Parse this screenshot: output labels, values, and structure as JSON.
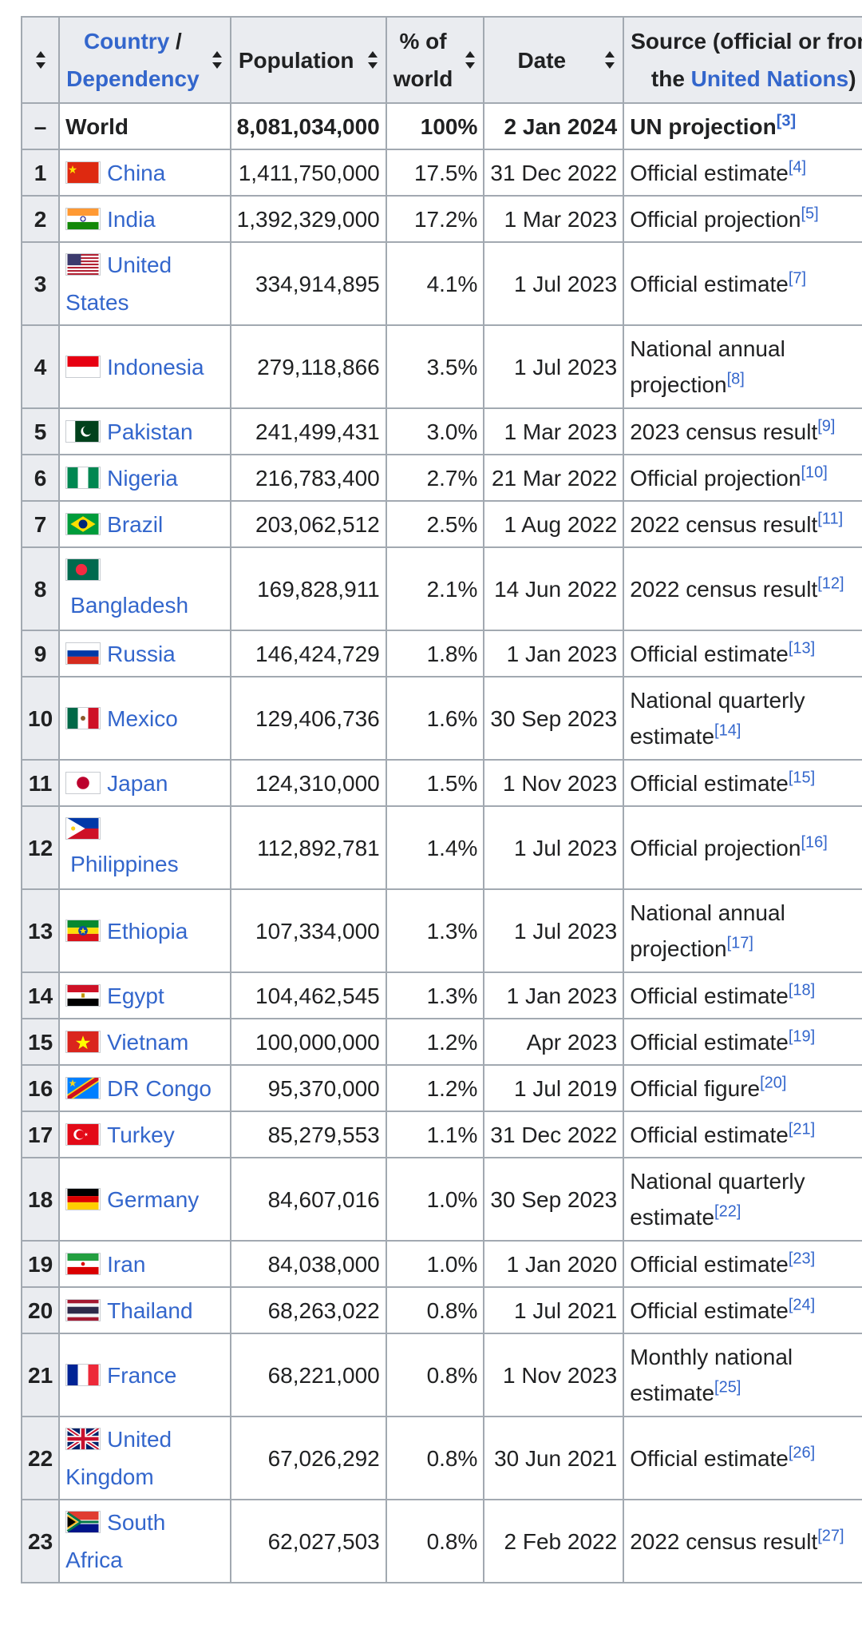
{
  "header": {
    "country": "Country",
    "slash": " / ",
    "dependency": "Dependency",
    "population": "Population",
    "pct_line1": "% of",
    "pct_line2": "world",
    "date": "Date",
    "source_line1": "Source (official or from",
    "source_line2_prefix": "the ",
    "source_line2_link": "United Nations",
    "source_line2_suffix": ")"
  },
  "world": {
    "rank": "–",
    "name": "World",
    "population": "8,081,034,000",
    "pct": "100%",
    "date": "2 Jan 2024",
    "source": "UN projection",
    "ref": "[3]"
  },
  "rows": [
    {
      "rank": "1",
      "name": "China",
      "population": "1,411,750,000",
      "pct": "17.5%",
      "date": "31 Dec 2022",
      "source": "Official estimate",
      "ref": "[4]"
    },
    {
      "rank": "2",
      "name": "India",
      "population": "1,392,329,000",
      "pct": "17.2%",
      "date": "1 Mar 2023",
      "source": "Official projection",
      "ref": "[5]"
    },
    {
      "rank": "3",
      "name_l1": "United",
      "name_l2": "States",
      "population": "334,914,895",
      "pct": "4.1%",
      "date": "1 Jul 2023",
      "source": "Official estimate",
      "ref": "[7]"
    },
    {
      "rank": "4",
      "name": "Indonesia",
      "population": "279,118,866",
      "pct": "3.5%",
      "date": "1 Jul 2023",
      "source_l1": "National annual",
      "source_l2": "projection",
      "ref": "[8]"
    },
    {
      "rank": "5",
      "name": "Pakistan",
      "population": "241,499,431",
      "pct": "3.0%",
      "date": "1 Mar 2023",
      "source": "2023 census result",
      "ref": "[9]"
    },
    {
      "rank": "6",
      "name": "Nigeria",
      "population": "216,783,400",
      "pct": "2.7%",
      "date": "21 Mar 2022",
      "source": "Official projection",
      "ref": "[10]"
    },
    {
      "rank": "7",
      "name": "Brazil",
      "population": "203,062,512",
      "pct": "2.5%",
      "date": "1 Aug 2022",
      "source": "2022 census result",
      "ref": "[11]"
    },
    {
      "rank": "8",
      "name": "Bangladesh",
      "population": "169,828,911",
      "pct": "2.1%",
      "date": "14 Jun 2022",
      "source": "2022 census result",
      "ref": "[12]"
    },
    {
      "rank": "9",
      "name": "Russia",
      "population": "146,424,729",
      "pct": "1.8%",
      "date": "1 Jan 2023",
      "source": "Official estimate",
      "ref": "[13]"
    },
    {
      "rank": "10",
      "name": "Mexico",
      "population": "129,406,736",
      "pct": "1.6%",
      "date": "30 Sep 2023",
      "source_l1": "National quarterly",
      "source_l2": "estimate",
      "ref": "[14]"
    },
    {
      "rank": "11",
      "name": "Japan",
      "population": "124,310,000",
      "pct": "1.5%",
      "date": "1 Nov 2023",
      "source": "Official estimate",
      "ref": "[15]"
    },
    {
      "rank": "12",
      "name": "Philippines",
      "population": "112,892,781",
      "pct": "1.4%",
      "date": "1 Jul 2023",
      "source": "Official projection",
      "ref": "[16]"
    },
    {
      "rank": "13",
      "name": "Ethiopia",
      "population": "107,334,000",
      "pct": "1.3%",
      "date": "1 Jul 2023",
      "source_l1": "National annual",
      "source_l2": "projection",
      "ref": "[17]"
    },
    {
      "rank": "14",
      "name": "Egypt",
      "population": "104,462,545",
      "pct": "1.3%",
      "date": "1 Jan 2023",
      "source": "Official estimate",
      "ref": "[18]"
    },
    {
      "rank": "15",
      "name": "Vietnam",
      "population": "100,000,000",
      "pct": "1.2%",
      "date": "Apr 2023",
      "source": "Official estimate",
      "ref": "[19]"
    },
    {
      "rank": "16",
      "name": "DR Congo",
      "population": "95,370,000",
      "pct": "1.2%",
      "date": "1 Jul 2019",
      "source": "Official figure",
      "ref": "[20]"
    },
    {
      "rank": "17",
      "name": "Turkey",
      "population": "85,279,553",
      "pct": "1.1%",
      "date": "31 Dec 2022",
      "source": "Official estimate",
      "ref": "[21]"
    },
    {
      "rank": "18",
      "name": "Germany",
      "population": "84,607,016",
      "pct": "1.0%",
      "date": "30 Sep 2023",
      "source_l1": "National quarterly",
      "source_l2": "estimate",
      "ref": "[22]"
    },
    {
      "rank": "19",
      "name": "Iran",
      "population": "84,038,000",
      "pct": "1.0%",
      "date": "1 Jan 2020",
      "source": "Official estimate",
      "ref": "[23]"
    },
    {
      "rank": "20",
      "name": "Thailand",
      "population": "68,263,022",
      "pct": "0.8%",
      "date": "1 Jul 2021",
      "source": "Official estimate",
      "ref": "[24]"
    },
    {
      "rank": "21",
      "name": "France",
      "population": "68,221,000",
      "pct": "0.8%",
      "date": "1 Nov 2023",
      "source_l1": "Monthly national",
      "source_l2": "estimate",
      "ref": "[25]"
    },
    {
      "rank": "22",
      "name_l1": "United",
      "name_l2": "Kingdom",
      "population": "67,026,292",
      "pct": "0.8%",
      "date": "30 Jun 2021",
      "source": "Official estimate",
      "ref": "[26]"
    },
    {
      "rank": "23",
      "name_l1": "South",
      "name_l2": "Africa",
      "population": "62,027,503",
      "pct": "0.8%",
      "date": "2 Feb 2022",
      "source": "2022 census result",
      "ref": "[27]"
    }
  ],
  "colors": {
    "link": "#3366cc",
    "header_bg": "#eaecf0",
    "border": "#a2a9b1"
  }
}
